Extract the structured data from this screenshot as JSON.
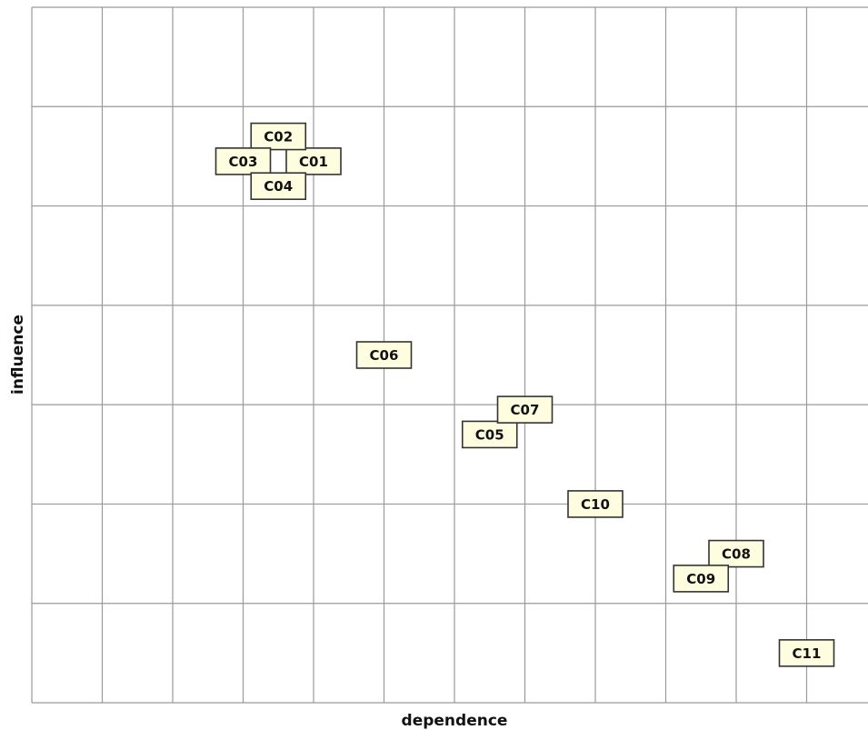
{
  "chart_data": {
    "type": "scatter",
    "title": "",
    "xlabel": "dependence",
    "ylabel": "influence",
    "xlim": [
      0,
      12
    ],
    "ylim": [
      0,
      7
    ],
    "x_divisions": 12,
    "y_divisions": 7,
    "grid": true,
    "colors": {
      "grid": "#9a9a9a",
      "label_fill": "#fffde0",
      "label_stroke": "#333333"
    },
    "points": [
      {
        "label": "C01",
        "x": 4.0,
        "y": 5.45
      },
      {
        "label": "C02",
        "x": 3.5,
        "y": 5.7
      },
      {
        "label": "C03",
        "x": 3.0,
        "y": 5.45
      },
      {
        "label": "C04",
        "x": 3.5,
        "y": 5.2
      },
      {
        "label": "C05",
        "x": 6.5,
        "y": 2.7
      },
      {
        "label": "C06",
        "x": 5.0,
        "y": 3.5
      },
      {
        "label": "C07",
        "x": 7.0,
        "y": 2.95
      },
      {
        "label": "C08",
        "x": 10.0,
        "y": 1.5
      },
      {
        "label": "C09",
        "x": 9.5,
        "y": 1.25
      },
      {
        "label": "C10",
        "x": 8.0,
        "y": 2.0
      },
      {
        "label": "C11",
        "x": 11.0,
        "y": 0.5
      }
    ]
  }
}
